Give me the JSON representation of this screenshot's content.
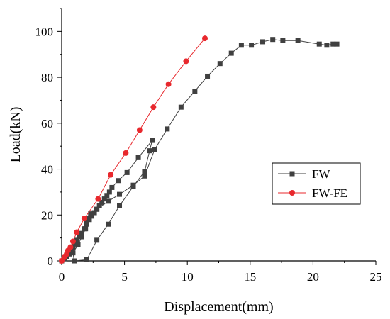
{
  "chart_data": {
    "type": "line",
    "xlabel": "Displacement(mm)",
    "ylabel": "Load(kN)",
    "xlim": [
      0,
      25
    ],
    "ylim": [
      0,
      110
    ],
    "xticks": [
      0,
      5,
      10,
      15,
      20,
      25
    ],
    "yticks": [
      0,
      20,
      40,
      60,
      80,
      100
    ],
    "grid": false,
    "legend_position": "right-middle",
    "series": [
      {
        "name": "FW",
        "color": "#404040",
        "marker": "square",
        "x": [
          0,
          0.2,
          0.4,
          0.6,
          0.8,
          0.9,
          1.0,
          1.2,
          1.4,
          1.6,
          1.8,
          2.0,
          2.2,
          2.4,
          2.6,
          2.8,
          3.0,
          3.2,
          3.4,
          3.6,
          3.8,
          4.0,
          4.5,
          5.2,
          6.1,
          7.2,
          7.0,
          6.6,
          5.7,
          4.6,
          3.7,
          2.8,
          2.0,
          1.0,
          0.9,
          1.3,
          1.6,
          1.9,
          2.0,
          2.1,
          2.3,
          2.8,
          3.7,
          4.6,
          5.7,
          6.6,
          7.4,
          8.4,
          9.5,
          10.6,
          11.6,
          12.6,
          13.5,
          14.3,
          15.1,
          16.0,
          16.8,
          17.6,
          18.8,
          20.5,
          21.1,
          21.6,
          21.9
        ],
        "y": [
          0,
          1,
          2,
          3,
          4.5,
          6,
          7.5,
          9,
          10.5,
          12,
          14,
          16,
          18,
          19.5,
          21,
          22.5,
          24,
          25.5,
          27,
          28.5,
          30,
          32,
          35,
          38.5,
          45,
          52.5,
          48,
          39,
          32.5,
          24,
          16,
          9,
          0.5,
          0,
          3.5,
          7,
          10.5,
          14,
          17,
          18.5,
          20.5,
          22.5,
          26,
          29,
          33,
          37,
          48.5,
          57.5,
          67,
          74,
          80.5,
          86,
          90.5,
          94,
          94,
          95.5,
          96.5,
          96,
          96,
          94.5,
          94,
          94.5,
          94.5
        ]
      },
      {
        "name": "FW-FE",
        "color": "#e8282d",
        "marker": "circle",
        "x": [
          0,
          0.2,
          0.4,
          0.5,
          0.7,
          0.9,
          1.2,
          1.8,
          2.9,
          3.9,
          5.1,
          6.2,
          7.3,
          8.5,
          9.9,
          11.4
        ],
        "y": [
          0,
          1.5,
          3,
          4.5,
          6,
          8.5,
          12.5,
          18.5,
          27,
          37.5,
          47,
          57,
          67,
          77,
          87,
          97
        ]
      }
    ]
  }
}
